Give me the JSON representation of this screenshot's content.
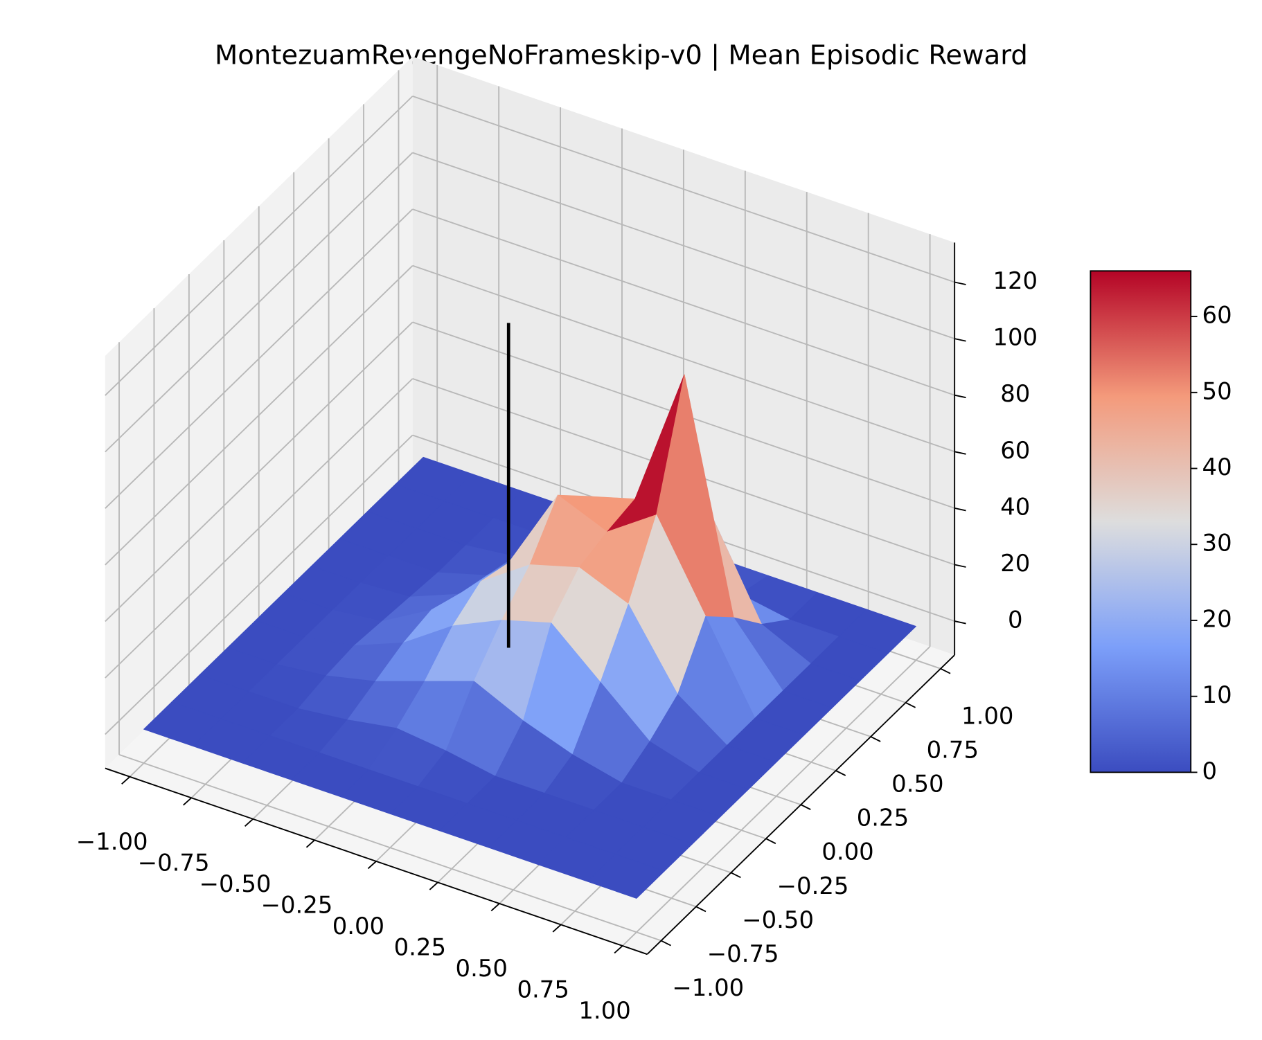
{
  "chart_data": {
    "type": "surface3d",
    "title": "MontezuamRevengeNoFrameskip-v0 | Mean Episodic Reward",
    "x": [
      -1,
      -0.8,
      -0.6,
      -0.4,
      -0.2,
      0,
      0.2,
      0.4,
      0.6,
      0.8,
      1
    ],
    "y": [
      -1,
      -0.8,
      -0.6,
      -0.4,
      -0.2,
      0,
      0.2,
      0.4,
      0.6,
      0.8,
      1
    ],
    "z": [
      [
        0,
        0,
        0,
        0,
        0,
        0,
        0,
        0,
        0,
        0,
        0
      ],
      [
        0,
        0,
        0,
        0,
        0,
        0,
        0,
        0,
        0,
        0,
        0
      ],
      [
        0,
        0,
        0,
        2,
        5,
        3,
        0,
        0,
        0,
        0,
        0
      ],
      [
        0,
        0,
        2,
        6,
        12,
        18,
        10,
        4,
        0,
        0,
        0
      ],
      [
        0,
        0,
        3,
        10,
        22,
        30,
        35,
        20,
        5,
        0,
        0
      ],
      [
        0,
        0,
        2,
        12,
        28,
        40,
        45,
        38,
        12,
        0,
        0
      ],
      [
        0,
        0,
        1,
        8,
        25,
        55,
        48,
        60,
        30,
        0,
        0
      ],
      [
        0,
        0,
        0,
        5,
        20,
        45,
        50,
        100,
        20,
        0,
        0
      ],
      [
        0,
        0,
        0,
        2,
        10,
        25,
        30,
        40,
        8,
        0,
        0
      ],
      [
        0,
        0,
        0,
        0,
        2,
        5,
        4,
        3,
        0,
        0,
        0
      ],
      [
        0,
        0,
        0,
        0,
        0,
        0,
        0,
        0,
        0,
        0,
        0
      ]
    ],
    "colormap": "coolwarm",
    "clim": [
      0,
      66
    ],
    "colorbar_ticks": [
      0,
      10,
      20,
      30,
      40,
      50,
      60
    ],
    "line": {
      "x": -0.2,
      "y": 0.2,
      "z": [
        -5,
        110
      ],
      "color": "#000000"
    },
    "xlim": [
      -1.1,
      1.1
    ],
    "ylim": [
      -1.1,
      1.1
    ],
    "zlim": [
      -12,
      134
    ],
    "xticks": [
      {
        "value": -1,
        "label": "−1.00"
      },
      {
        "value": -0.75,
        "label": "−0.75"
      },
      {
        "value": -0.5,
        "label": "−0.50"
      },
      {
        "value": -0.25,
        "label": "−0.25"
      },
      {
        "value": 0,
        "label": "0.00"
      },
      {
        "value": 0.25,
        "label": "0.25"
      },
      {
        "value": 0.5,
        "label": "0.50"
      },
      {
        "value": 0.75,
        "label": "0.75"
      },
      {
        "value": 1,
        "label": "1.00"
      }
    ],
    "yticks": [
      {
        "value": -1,
        "label": "−1.00"
      },
      {
        "value": -0.75,
        "label": "−0.75"
      },
      {
        "value": -0.5,
        "label": "−0.50"
      },
      {
        "value": -0.25,
        "label": "−0.25"
      },
      {
        "value": 0,
        "label": "0.00"
      },
      {
        "value": 0.25,
        "label": "0.25"
      },
      {
        "value": 0.5,
        "label": "0.50"
      },
      {
        "value": 0.75,
        "label": "0.75"
      },
      {
        "value": 1,
        "label": "1.00"
      }
    ],
    "zticks": [
      0,
      20,
      40,
      60,
      80,
      100,
      120
    ],
    "grid": true
  }
}
